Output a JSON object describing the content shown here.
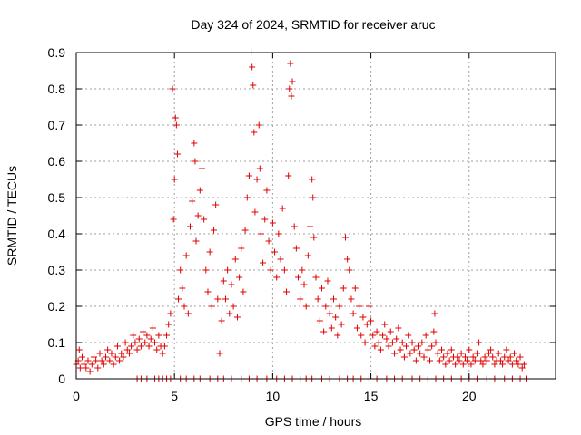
{
  "chart_data": {
    "type": "scatter",
    "title": "Day 324 of 2024, SRMTID for receiver aruc",
    "xlabel": "GPS time / hours",
    "ylabel": "SRMTID / TECUs",
    "xlim": [
      0,
      24.4
    ],
    "ylim": [
      0,
      0.9
    ],
    "xticks": [
      0,
      5,
      10,
      15,
      20
    ],
    "xtick_labels": [
      "0",
      "5",
      "10",
      "15",
      "20"
    ],
    "yticks": [
      0,
      0.1,
      0.2,
      0.3,
      0.4,
      0.5,
      0.6,
      0.7,
      0.8,
      0.9
    ],
    "ytick_labels": [
      "0",
      "0.1",
      "0.2",
      "0.3",
      "0.4",
      "0.5",
      "0.6",
      "0.7",
      "0.8",
      "0.9"
    ],
    "grid": true,
    "marker": "+",
    "color": "#e00000",
    "series": [
      {
        "name": "SRMTID",
        "points": [
          [
            0.0,
            0.04
          ],
          [
            0.1,
            0.05
          ],
          [
            0.15,
            0.08
          ],
          [
            0.2,
            0.03
          ],
          [
            0.3,
            0.06
          ],
          [
            0.4,
            0.04
          ],
          [
            0.5,
            0.03
          ],
          [
            0.6,
            0.05
          ],
          [
            0.7,
            0.02
          ],
          [
            0.8,
            0.04
          ],
          [
            0.9,
            0.06
          ],
          [
            1.0,
            0.05
          ],
          [
            1.1,
            0.03
          ],
          [
            1.2,
            0.07
          ],
          [
            1.3,
            0.05
          ],
          [
            1.4,
            0.04
          ],
          [
            1.5,
            0.06
          ],
          [
            1.6,
            0.08
          ],
          [
            1.7,
            0.05
          ],
          [
            1.8,
            0.07
          ],
          [
            1.9,
            0.04
          ],
          [
            2.0,
            0.06
          ],
          [
            2.1,
            0.09
          ],
          [
            2.2,
            0.05
          ],
          [
            2.3,
            0.07
          ],
          [
            2.4,
            0.06
          ],
          [
            2.5,
            0.1
          ],
          [
            2.6,
            0.08
          ],
          [
            2.7,
            0.07
          ],
          [
            2.8,
            0.09
          ],
          [
            2.9,
            0.12
          ],
          [
            3.0,
            0.1
          ],
          [
            3.1,
            0.08
          ],
          [
            3.2,
            0.11
          ],
          [
            3.3,
            0.09
          ],
          [
            3.4,
            0.13
          ],
          [
            3.5,
            0.1
          ],
          [
            3.6,
            0.12
          ],
          [
            3.7,
            0.09
          ],
          [
            3.8,
            0.11
          ],
          [
            3.9,
            0.14
          ],
          [
            4.0,
            0.1
          ],
          [
            4.1,
            0.08
          ],
          [
            4.2,
            0.12
          ],
          [
            4.3,
            0.09
          ],
          [
            4.4,
            0.07
          ],
          [
            4.5,
            0.09
          ],
          [
            4.6,
            0.12
          ],
          [
            4.7,
            0.15
          ],
          [
            4.8,
            0.18
          ],
          [
            4.9,
            0.8
          ],
          [
            4.95,
            0.44
          ],
          [
            5.0,
            0.55
          ],
          [
            5.05,
            0.72
          ],
          [
            5.1,
            0.7
          ],
          [
            5.15,
            0.62
          ],
          [
            5.2,
            0.22
          ],
          [
            5.3,
            0.3
          ],
          [
            5.4,
            0.25
          ],
          [
            5.5,
            0.2
          ],
          [
            5.6,
            0.34
          ],
          [
            5.7,
            0.18
          ],
          [
            5.8,
            0.42
          ],
          [
            5.9,
            0.49
          ],
          [
            6.0,
            0.65
          ],
          [
            6.05,
            0.6
          ],
          [
            6.1,
            0.38
          ],
          [
            6.2,
            0.45
          ],
          [
            6.3,
            0.52
          ],
          [
            6.4,
            0.58
          ],
          [
            6.5,
            0.44
          ],
          [
            6.6,
            0.3
          ],
          [
            6.7,
            0.24
          ],
          [
            6.8,
            0.35
          ],
          [
            6.9,
            0.2
          ],
          [
            7.0,
            0.41
          ],
          [
            7.1,
            0.48
          ],
          [
            7.2,
            0.22
          ],
          [
            7.3,
            0.07
          ],
          [
            7.4,
            0.16
          ],
          [
            7.5,
            0.27
          ],
          [
            7.6,
            0.22
          ],
          [
            7.7,
            0.3
          ],
          [
            7.8,
            0.18
          ],
          [
            7.9,
            0.26
          ],
          [
            8.0,
            0.2
          ],
          [
            8.1,
            0.33
          ],
          [
            8.2,
            0.17
          ],
          [
            8.3,
            0.28
          ],
          [
            8.4,
            0.36
          ],
          [
            8.5,
            0.24
          ],
          [
            8.6,
            0.41
          ],
          [
            8.7,
            0.5
          ],
          [
            8.8,
            0.56
          ],
          [
            8.9,
            0.9
          ],
          [
            8.95,
            0.86
          ],
          [
            9.0,
            0.81
          ],
          [
            9.05,
            0.68
          ],
          [
            9.1,
            0.46
          ],
          [
            9.2,
            0.55
          ],
          [
            9.3,
            0.7
          ],
          [
            9.35,
            0.58
          ],
          [
            9.4,
            0.4
          ],
          [
            9.5,
            0.32
          ],
          [
            9.6,
            0.44
          ],
          [
            9.7,
            0.52
          ],
          [
            9.8,
            0.38
          ],
          [
            9.9,
            0.3
          ],
          [
            10.0,
            0.43
          ],
          [
            10.1,
            0.35
          ],
          [
            10.2,
            0.28
          ],
          [
            10.3,
            0.4
          ],
          [
            10.4,
            0.33
          ],
          [
            10.5,
            0.47
          ],
          [
            10.6,
            0.3
          ],
          [
            10.7,
            0.24
          ],
          [
            10.8,
            0.56
          ],
          [
            10.85,
            0.8
          ],
          [
            10.9,
            0.87
          ],
          [
            10.95,
            0.78
          ],
          [
            11.0,
            0.82
          ],
          [
            11.1,
            0.42
          ],
          [
            11.2,
            0.36
          ],
          [
            11.3,
            0.28
          ],
          [
            11.4,
            0.22
          ],
          [
            11.5,
            0.3
          ],
          [
            11.6,
            0.26
          ],
          [
            11.7,
            0.2
          ],
          [
            11.8,
            0.34
          ],
          [
            11.9,
            0.42
          ],
          [
            12.0,
            0.55
          ],
          [
            12.05,
            0.5
          ],
          [
            12.1,
            0.39
          ],
          [
            12.2,
            0.28
          ],
          [
            12.3,
            0.22
          ],
          [
            12.4,
            0.16
          ],
          [
            12.5,
            0.25
          ],
          [
            12.6,
            0.13
          ],
          [
            12.7,
            0.2
          ],
          [
            12.8,
            0.27
          ],
          [
            12.9,
            0.18
          ],
          [
            13.0,
            0.14
          ],
          [
            13.1,
            0.22
          ],
          [
            13.2,
            0.17
          ],
          [
            13.3,
            0.12
          ],
          [
            13.4,
            0.2
          ],
          [
            13.5,
            0.15
          ],
          [
            13.6,
            0.25
          ],
          [
            13.7,
            0.39
          ],
          [
            13.8,
            0.33
          ],
          [
            13.9,
            0.3
          ],
          [
            14.0,
            0.22
          ],
          [
            14.1,
            0.18
          ],
          [
            14.2,
            0.25
          ],
          [
            14.3,
            0.14
          ],
          [
            14.4,
            0.2
          ],
          [
            14.5,
            0.12
          ],
          [
            14.6,
            0.17
          ],
          [
            14.7,
            0.1
          ],
          [
            14.8,
            0.15
          ],
          [
            14.9,
            0.2
          ],
          [
            15.0,
            0.16
          ],
          [
            15.1,
            0.12
          ],
          [
            15.2,
            0.09
          ],
          [
            15.3,
            0.13
          ],
          [
            15.4,
            0.1
          ],
          [
            15.5,
            0.08
          ],
          [
            15.6,
            0.12
          ],
          [
            15.7,
            0.15
          ],
          [
            15.8,
            0.11
          ],
          [
            15.9,
            0.09
          ],
          [
            16.0,
            0.13
          ],
          [
            16.1,
            0.1
          ],
          [
            16.2,
            0.07
          ],
          [
            16.3,
            0.11
          ],
          [
            16.4,
            0.14
          ],
          [
            16.5,
            0.08
          ],
          [
            16.6,
            0.1
          ],
          [
            16.7,
            0.06
          ],
          [
            16.8,
            0.09
          ],
          [
            16.9,
            0.12
          ],
          [
            17.0,
            0.07
          ],
          [
            17.1,
            0.1
          ],
          [
            17.2,
            0.08
          ],
          [
            17.3,
            0.05
          ],
          [
            17.4,
            0.09
          ],
          [
            17.5,
            0.07
          ],
          [
            17.6,
            0.1
          ],
          [
            17.7,
            0.06
          ],
          [
            17.8,
            0.12
          ],
          [
            17.9,
            0.08
          ],
          [
            18.0,
            0.05
          ],
          [
            18.1,
            0.09
          ],
          [
            18.2,
            0.13
          ],
          [
            18.25,
            0.18
          ],
          [
            18.3,
            0.1
          ],
          [
            18.4,
            0.07
          ],
          [
            18.5,
            0.05
          ],
          [
            18.6,
            0.08
          ],
          [
            18.7,
            0.06
          ],
          [
            18.8,
            0.04
          ],
          [
            18.9,
            0.07
          ],
          [
            19.0,
            0.05
          ],
          [
            19.1,
            0.08
          ],
          [
            19.2,
            0.06
          ],
          [
            19.3,
            0.04
          ],
          [
            19.4,
            0.06
          ],
          [
            19.5,
            0.05
          ],
          [
            19.6,
            0.07
          ],
          [
            19.7,
            0.04
          ],
          [
            19.8,
            0.06
          ],
          [
            19.9,
            0.05
          ],
          [
            20.0,
            0.08
          ],
          [
            20.1,
            0.04
          ],
          [
            20.2,
            0.06
          ],
          [
            20.3,
            0.05
          ],
          [
            20.4,
            0.07
          ],
          [
            20.5,
            0.1
          ],
          [
            20.6,
            0.05
          ],
          [
            20.7,
            0.04
          ],
          [
            20.8,
            0.06
          ],
          [
            20.9,
            0.05
          ],
          [
            21.0,
            0.07
          ],
          [
            21.1,
            0.08
          ],
          [
            21.2,
            0.06
          ],
          [
            21.3,
            0.04
          ],
          [
            21.4,
            0.05
          ],
          [
            21.5,
            0.07
          ],
          [
            21.6,
            0.05
          ],
          [
            21.7,
            0.04
          ],
          [
            21.8,
            0.06
          ],
          [
            21.9,
            0.08
          ],
          [
            22.0,
            0.05
          ],
          [
            22.1,
            0.06
          ],
          [
            22.2,
            0.04
          ],
          [
            22.3,
            0.07
          ],
          [
            22.4,
            0.05
          ],
          [
            22.5,
            0.04
          ],
          [
            22.6,
            0.06
          ],
          [
            22.7,
            0.03
          ],
          [
            22.8,
            0.04
          ],
          [
            3.1,
            0.0
          ],
          [
            3.3,
            0.0
          ],
          [
            3.6,
            0.0
          ],
          [
            4.0,
            0.0
          ],
          [
            4.2,
            0.0
          ],
          [
            4.4,
            0.0
          ],
          [
            4.6,
            0.0
          ],
          [
            4.8,
            0.0
          ],
          [
            5.3,
            0.0
          ],
          [
            5.6,
            0.0
          ],
          [
            6.0,
            0.0
          ],
          [
            6.3,
            0.0
          ],
          [
            6.8,
            0.0
          ],
          [
            7.2,
            0.0
          ],
          [
            7.5,
            0.0
          ],
          [
            7.9,
            0.0
          ],
          [
            8.4,
            0.0
          ],
          [
            8.8,
            0.0
          ],
          [
            9.2,
            0.0
          ],
          [
            9.7,
            0.0
          ],
          [
            10.2,
            0.0
          ],
          [
            10.6,
            0.0
          ],
          [
            11.0,
            0.0
          ],
          [
            11.4,
            0.0
          ],
          [
            11.7,
            0.0
          ],
          [
            12.0,
            0.0
          ],
          [
            12.5,
            0.0
          ],
          [
            12.9,
            0.0
          ],
          [
            13.4,
            0.0
          ],
          [
            13.8,
            0.0
          ],
          [
            14.1,
            0.0
          ],
          [
            14.5,
            0.0
          ],
          [
            14.9,
            0.0
          ],
          [
            15.3,
            0.0
          ],
          [
            15.8,
            0.0
          ],
          [
            16.2,
            0.0
          ],
          [
            16.6,
            0.0
          ],
          [
            17.1,
            0.0
          ],
          [
            17.5,
            0.0
          ],
          [
            17.9,
            0.0
          ],
          [
            18.3,
            0.0
          ],
          [
            18.7,
            0.0
          ],
          [
            19.1,
            0.0
          ],
          [
            19.6,
            0.0
          ],
          [
            20.0,
            0.0
          ],
          [
            20.4,
            0.0
          ],
          [
            20.9,
            0.0
          ],
          [
            21.3,
            0.0
          ],
          [
            21.8,
            0.0
          ],
          [
            22.2,
            0.0
          ],
          [
            22.6,
            0.0
          ],
          [
            22.9,
            0.0
          ]
        ]
      }
    ]
  }
}
